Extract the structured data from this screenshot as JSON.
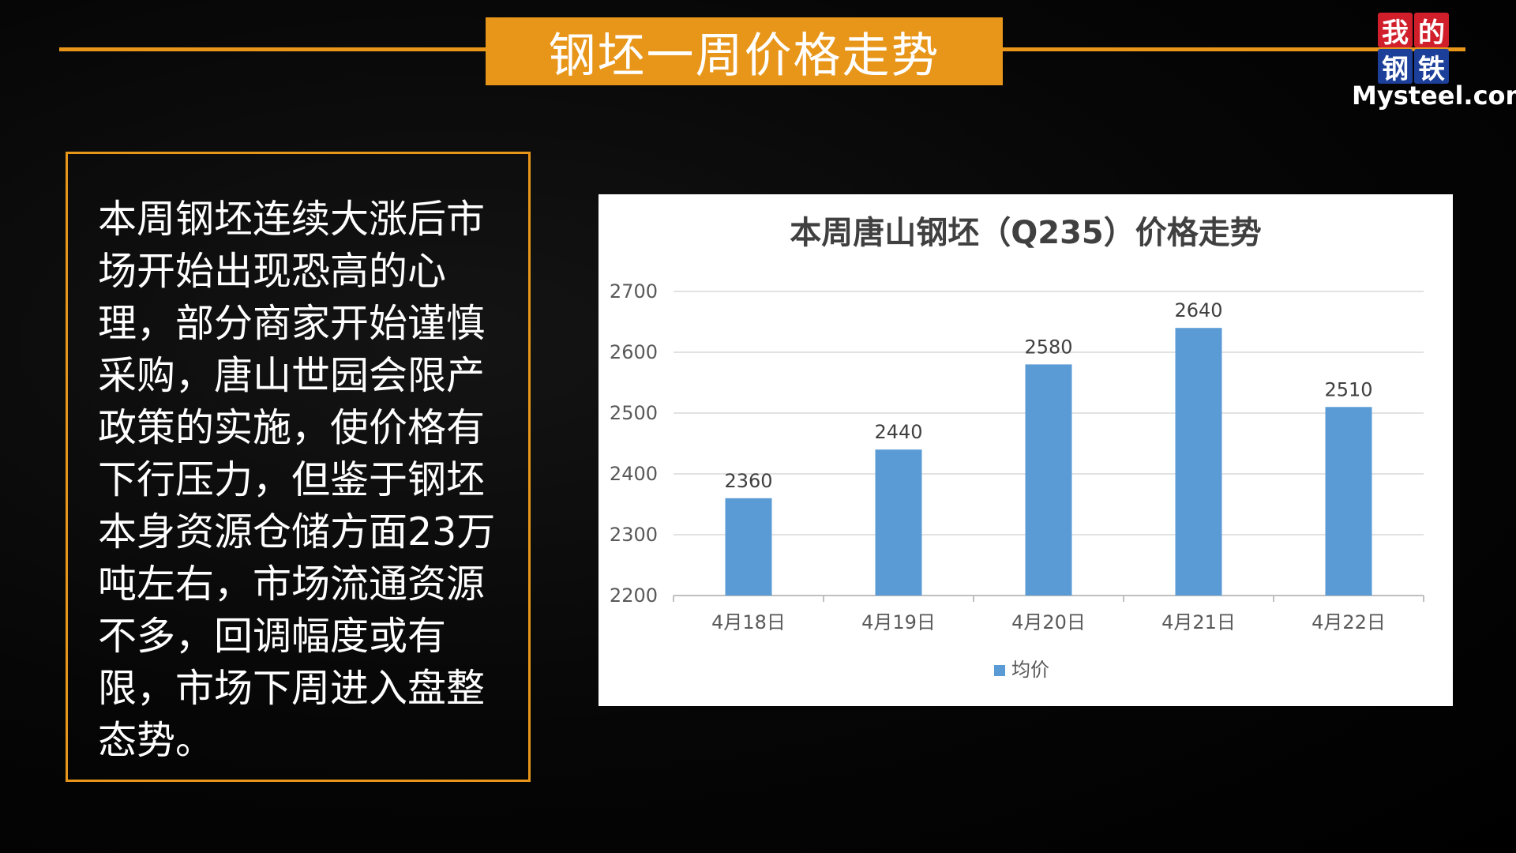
{
  "header": {
    "title": "钢坯一周价格走势"
  },
  "logo": {
    "cn_chars": [
      "我",
      "的",
      "钢",
      "铁"
    ],
    "en": "Mysteel.com"
  },
  "panel": {
    "text": "本周钢坯连续大涨后市场开始出现恐高的心理，部分商家开始谨慎采购，唐山世园会限产政策的实施，使价格有下行压力，但鉴于钢坯本身资源仓储方面23万吨左右，市场流通资源不多，回调幅度或有限，市场下周进入盘整态势。"
  },
  "colors": {
    "accent": "#e8961a",
    "bar": "#5b9bd5",
    "logo_red": "#d01f2a",
    "logo_blue": "#1c3f9a"
  },
  "chart_data": {
    "type": "bar",
    "title": "本周唐山钢坯（Q235）价格走势",
    "categories": [
      "4月18日",
      "4月19日",
      "4月20日",
      "4月21日",
      "4月22日"
    ],
    "series": [
      {
        "name": "均价",
        "values": [
          2360,
          2440,
          2580,
          2640,
          2510
        ]
      }
    ],
    "ylim": [
      2200,
      2700
    ],
    "yticks": [
      2200,
      2300,
      2400,
      2500,
      2600,
      2700
    ],
    "xlabel": "",
    "ylabel": "",
    "grid": true,
    "legend": "bottom"
  }
}
